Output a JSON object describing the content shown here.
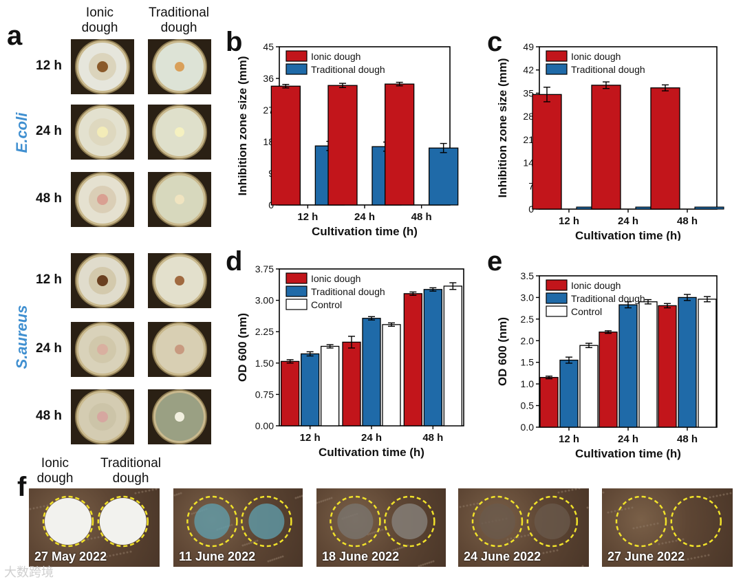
{
  "panels": {
    "a": {
      "letter": "a",
      "col_headers": [
        "Ionic\ndough",
        "Traditional\ndough"
      ],
      "species": [
        "E.coli",
        "S.aureus"
      ],
      "times": [
        "12 h",
        "24 h",
        "48 h"
      ]
    },
    "f": {
      "letter": "f",
      "col_headers": [
        "Ionic\ndough",
        "Traditional\ndough"
      ],
      "dates": [
        "27 May 2022",
        "11 June 2022",
        "18 June 2022",
        "24 June 2022",
        "27 June 2022"
      ]
    }
  },
  "chart_data": [
    {
      "panel": "b",
      "type": "bar",
      "categories": [
        "12 h",
        "24 h",
        "48 h"
      ],
      "series": [
        {
          "name": "Ionic dough",
          "values": [
            33.8,
            34.0,
            34.4
          ],
          "errors": [
            0.5,
            0.6,
            0.5
          ]
        },
        {
          "name": "Traditional dough",
          "values": [
            16.8,
            16.6,
            16.2
          ],
          "errors": [
            1.3,
            1.3,
            1.3
          ]
        }
      ],
      "xlabel": "Cultivation time (h)",
      "ylabel": "Inhibition zone size (mm)",
      "ylim": [
        0,
        45
      ],
      "yticks": [
        "0",
        "9",
        "18",
        "27",
        "36",
        "45"
      ],
      "legend": "top-left"
    },
    {
      "panel": "c",
      "type": "bar",
      "categories": [
        "12 h",
        "24 h",
        "48 h"
      ],
      "series": [
        {
          "name": "Ionic dough",
          "values": [
            34.6,
            37.4,
            36.6
          ],
          "errors": [
            2.2,
            1.0,
            0.9
          ]
        },
        {
          "name": "Traditional dough",
          "values": [
            0,
            0,
            0
          ],
          "errors": [
            0,
            0,
            0
          ]
        }
      ],
      "xlabel": "Cultivation time (h)",
      "ylabel": "Inhibition zone size (mm)",
      "ylim": [
        0,
        49
      ],
      "yticks": [
        "0",
        "7",
        "14",
        "21",
        "28",
        "35",
        "42",
        "49"
      ],
      "legend": "top-left"
    },
    {
      "panel": "d",
      "type": "bar",
      "categories": [
        "12 h",
        "24 h",
        "48 h"
      ],
      "series": [
        {
          "name": "Ionic dough",
          "values": [
            1.54,
            2.0,
            3.16
          ],
          "errors": [
            0.04,
            0.14,
            0.04
          ]
        },
        {
          "name": "Traditional dough",
          "values": [
            1.72,
            2.57,
            3.26
          ],
          "errors": [
            0.05,
            0.04,
            0.04
          ]
        },
        {
          "name": "Control",
          "values": [
            1.9,
            2.42,
            3.34
          ],
          "errors": [
            0.04,
            0.04,
            0.08
          ]
        }
      ],
      "xlabel": "Cultivation time (h)",
      "ylabel": "OD 600 (nm)",
      "ylim": [
        0,
        3.75
      ],
      "yticks": [
        "0.00",
        "0.75",
        "1.50",
        "2.25",
        "3.00",
        "3.75"
      ],
      "legend": "top-left"
    },
    {
      "panel": "e",
      "type": "bar",
      "categories": [
        "12 h",
        "24 h",
        "48 h"
      ],
      "series": [
        {
          "name": "Ionic dough",
          "values": [
            1.15,
            2.2,
            2.81
          ],
          "errors": [
            0.03,
            0.03,
            0.05
          ]
        },
        {
          "name": "Traditional dough",
          "values": [
            1.55,
            2.83,
            3.0
          ],
          "errors": [
            0.07,
            0.07,
            0.07
          ]
        },
        {
          "name": "Control",
          "values": [
            1.89,
            2.9,
            2.96
          ],
          "errors": [
            0.05,
            0.05,
            0.06
          ]
        }
      ],
      "xlabel": "Cultivation time (h)",
      "ylabel": "OD 600 (nm)",
      "ylim": [
        0,
        3.5
      ],
      "yticks": [
        "0.0",
        "0.5",
        "1.0",
        "1.5",
        "2.0",
        "2.5",
        "3.0",
        "3.5"
      ],
      "legend": "top-left"
    }
  ],
  "colors": {
    "ionic": "#c2151b",
    "traditional": "#1f6aa8",
    "control": "#ffffff",
    "species_text": "#3f8fd0",
    "dashed_circle": "#f0e12a"
  },
  "watermark": "大数跨境"
}
